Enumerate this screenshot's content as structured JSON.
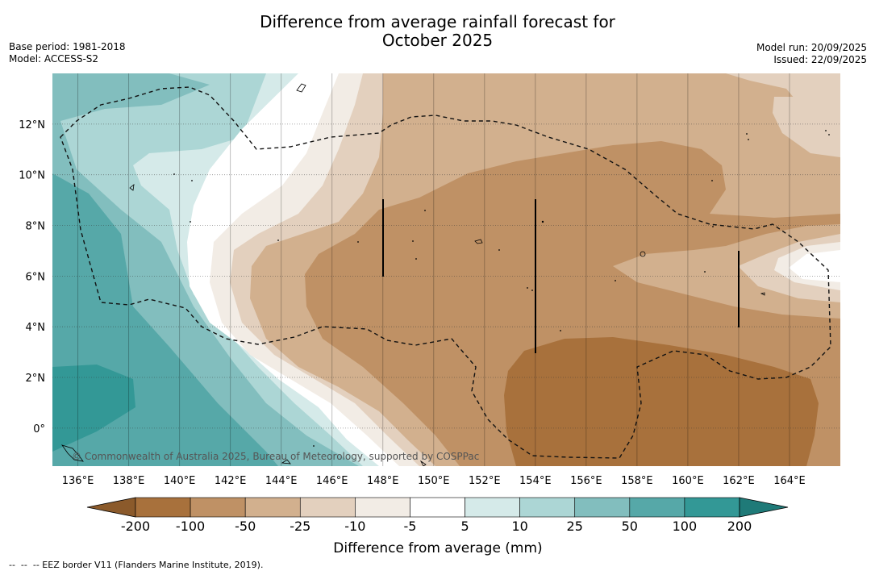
{
  "title": {
    "line1": "Difference from average rainfall forecast for",
    "line2": "October 2025"
  },
  "meta_left": {
    "base_period": "Base period: 1981-2018",
    "model": "Model: ACCESS-S2"
  },
  "meta_right": {
    "model_run": "Model run: 20/09/2025",
    "issued": "Issued: 22/09/2025"
  },
  "map": {
    "lon_range": [
      135,
      166
    ],
    "lat_range": [
      -1.5,
      14
    ],
    "lon_ticks": [
      "136°E",
      "138°E",
      "140°E",
      "142°E",
      "144°E",
      "146°E",
      "148°E",
      "150°E",
      "152°E",
      "154°E",
      "156°E",
      "158°E",
      "160°E",
      "162°E",
      "164°E"
    ],
    "lat_ticks": [
      "12°N",
      "10°N",
      "8°N",
      "6°N",
      "4°N",
      "2°N",
      "0°"
    ],
    "copyright": "© Commonwealth of Australia 2025, Bureau of Meteorology, supported by COSPPac"
  },
  "colorbar": {
    "labels": [
      "-200",
      "-100",
      "-50",
      "-25",
      "-10",
      "-5",
      "5",
      "10",
      "25",
      "50",
      "100",
      "200"
    ],
    "colors": [
      "#8b5a2b",
      "#a8713c",
      "#bf9165",
      "#d2b08e",
      "#e3d0be",
      "#f2ece5",
      "#ffffff",
      "#d5eae9",
      "#acd6d5",
      "#82bebe",
      "#56a8a8",
      "#339896",
      "#1f7a78"
    ],
    "title": "Difference from average (mm)"
  },
  "footnote": "--  --  -- EEZ border V11 (Flanders Marine Institute, 2019)."
}
